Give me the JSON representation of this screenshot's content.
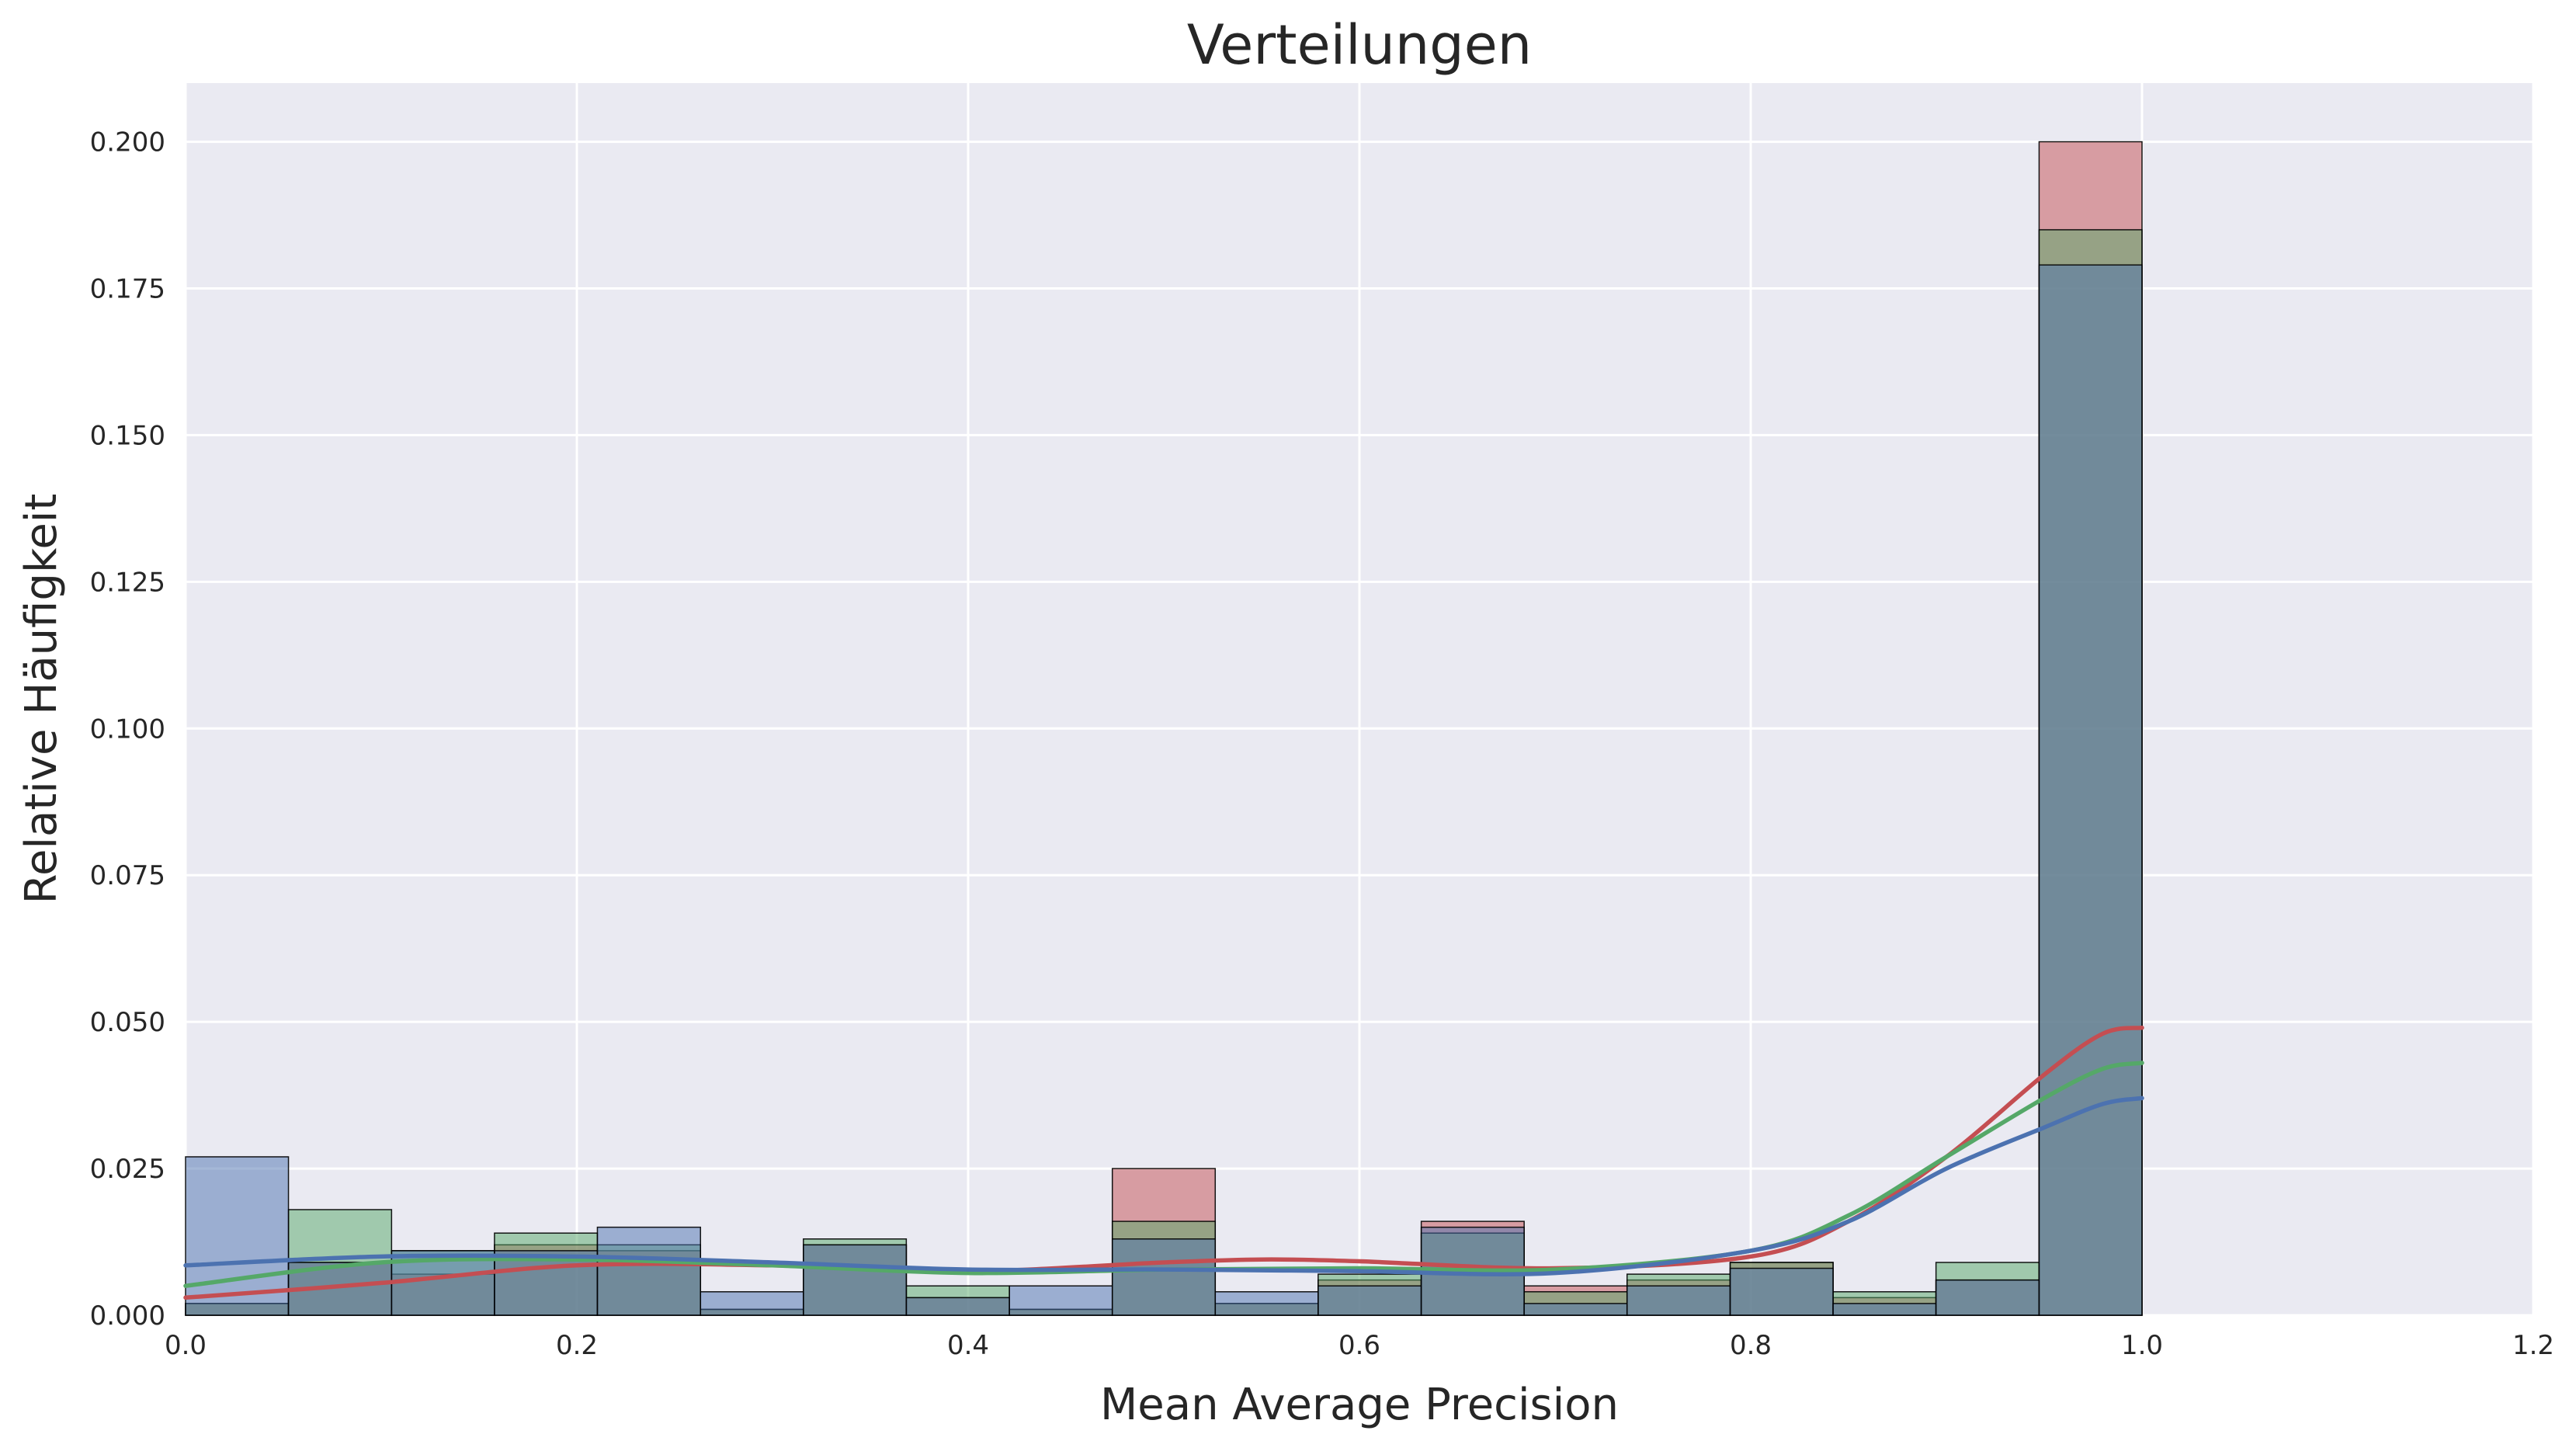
{
  "chart_data": {
    "type": "histogram",
    "title": "Verteilungen",
    "xlabel": "Mean Average Precision",
    "ylabel": "Relative Häufigkeit",
    "xlim": [
      0.0,
      1.2
    ],
    "ylim": [
      0.0,
      0.21
    ],
    "xticks": [
      "0.0",
      "0.2",
      "0.4",
      "0.6",
      "0.8",
      "1.0",
      "1.2"
    ],
    "yticks": [
      "0.000",
      "0.025",
      "0.050",
      "0.075",
      "0.100",
      "0.125",
      "0.150",
      "0.175",
      "0.200"
    ],
    "grid": true,
    "bins": [
      0.0,
      0.0526,
      0.1053,
      0.1579,
      0.2105,
      0.2632,
      0.3158,
      0.3684,
      0.4211,
      0.4737,
      0.5263,
      0.5789,
      0.6316,
      0.6842,
      0.7368,
      0.7895,
      0.8421,
      0.8947,
      0.9474,
      1.0
    ],
    "series": [
      {
        "color": "#c44e52",
        "values": [
          0.002,
          0.009,
          0.007,
          0.012,
          0.011,
          0.001,
          0.012,
          0.003,
          0.001,
          0.025,
          0.002,
          0.006,
          0.016,
          0.005,
          0.006,
          0.009,
          0.003,
          0.006,
          0.2
        ],
        "kde": [
          [
            0.0,
            0.003
          ],
          [
            0.1,
            0.0055
          ],
          [
            0.2,
            0.0085
          ],
          [
            0.3,
            0.0085
          ],
          [
            0.4,
            0.0075
          ],
          [
            0.5,
            0.009
          ],
          [
            0.55,
            0.0095
          ],
          [
            0.6,
            0.0092
          ],
          [
            0.7,
            0.008
          ],
          [
            0.8,
            0.01
          ],
          [
            0.85,
            0.016
          ],
          [
            0.9,
            0.027
          ],
          [
            0.95,
            0.041
          ],
          [
            0.98,
            0.048
          ],
          [
            1.0,
            0.049
          ]
        ]
      },
      {
        "color": "#55a868",
        "values": [
          0.002,
          0.018,
          0.011,
          0.014,
          0.012,
          0.001,
          0.013,
          0.005,
          0.001,
          0.016,
          0.002,
          0.007,
          0.014,
          0.004,
          0.007,
          0.009,
          0.004,
          0.009,
          0.185
        ],
        "kde": [
          [
            0.0,
            0.005
          ],
          [
            0.1,
            0.009
          ],
          [
            0.2,
            0.0095
          ],
          [
            0.3,
            0.0085
          ],
          [
            0.4,
            0.0072
          ],
          [
            0.5,
            0.0078
          ],
          [
            0.6,
            0.008
          ],
          [
            0.7,
            0.0078
          ],
          [
            0.8,
            0.011
          ],
          [
            0.85,
            0.017
          ],
          [
            0.9,
            0.027
          ],
          [
            0.95,
            0.037
          ],
          [
            0.98,
            0.042
          ],
          [
            1.0,
            0.043
          ]
        ]
      },
      {
        "color": "#4c72b0",
        "values": [
          0.027,
          0.009,
          0.011,
          0.011,
          0.015,
          0.004,
          0.012,
          0.003,
          0.005,
          0.013,
          0.004,
          0.005,
          0.015,
          0.002,
          0.005,
          0.008,
          0.002,
          0.006,
          0.179
        ],
        "kde": [
          [
            0.0,
            0.0085
          ],
          [
            0.1,
            0.01
          ],
          [
            0.2,
            0.01
          ],
          [
            0.3,
            0.009
          ],
          [
            0.4,
            0.0078
          ],
          [
            0.5,
            0.0078
          ],
          [
            0.6,
            0.0075
          ],
          [
            0.7,
            0.0072
          ],
          [
            0.8,
            0.011
          ],
          [
            0.85,
            0.016
          ],
          [
            0.9,
            0.025
          ],
          [
            0.95,
            0.032
          ],
          [
            0.98,
            0.036
          ],
          [
            1.0,
            0.037
          ]
        ]
      }
    ]
  }
}
